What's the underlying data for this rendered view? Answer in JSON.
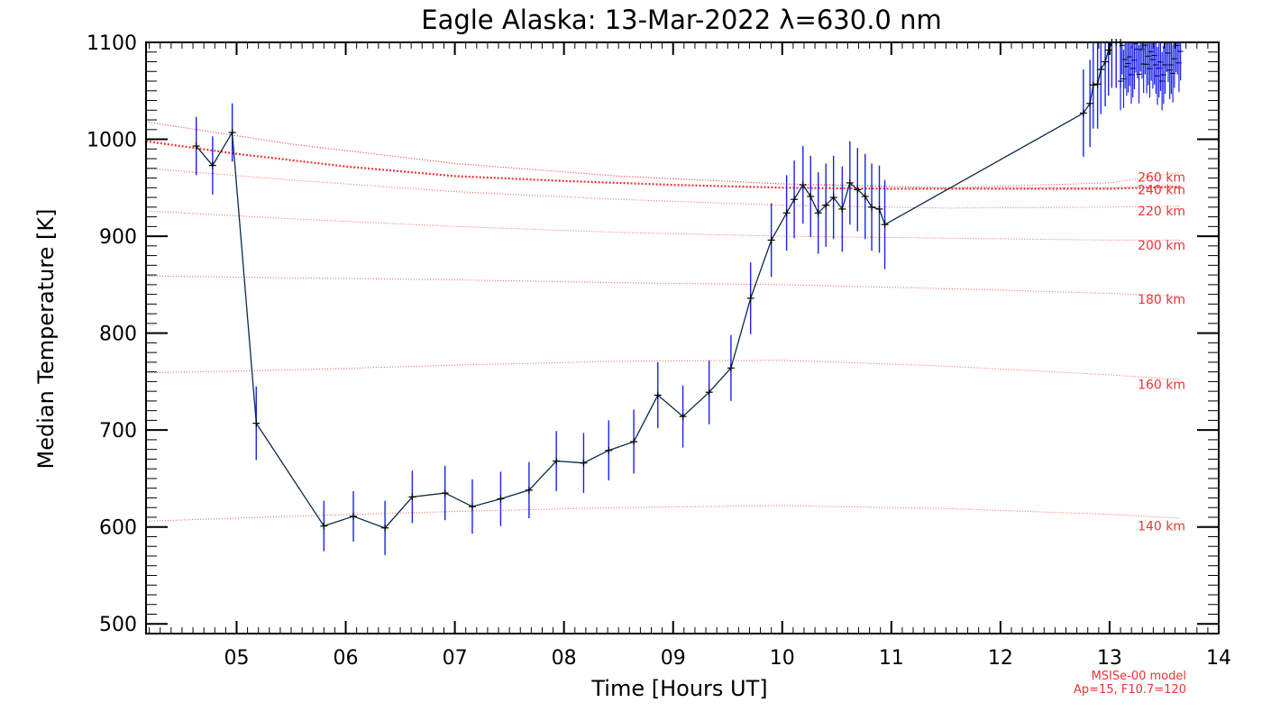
{
  "chart_data": {
    "type": "line",
    "title": "Eagle Alaska: 13-Mar-2022 λ=630.0 nm",
    "xlabel": "Time [Hours UT]",
    "ylabel": "Median Temperature [K]",
    "xlim": [
      4.17,
      14.0
    ],
    "ylim": [
      490,
      1100
    ],
    "x_ticks": [
      5,
      6,
      7,
      8,
      9,
      10,
      11,
      12,
      13,
      14
    ],
    "x_tick_labels": [
      "05",
      "06",
      "07",
      "08",
      "09",
      "10",
      "11",
      "12",
      "13",
      "14"
    ],
    "y_ticks": [
      500,
      600,
      700,
      800,
      900,
      1000,
      1100
    ],
    "y_tick_labels": [
      "500",
      "600",
      "700",
      "800",
      "900",
      "1000",
      "1100"
    ],
    "grid": false,
    "series": [
      {
        "color": "#0b2a4a",
        "errorbar_color": "#1a22ee",
        "x": [
          4.63,
          4.78,
          4.96,
          5.18,
          5.8,
          6.07,
          6.36,
          6.61,
          6.91,
          7.16,
          7.42,
          7.68,
          7.93,
          8.18,
          8.41,
          8.64,
          8.86,
          9.09,
          9.33,
          9.53,
          9.71,
          9.9,
          10.04,
          10.11,
          10.19,
          10.26,
          10.33,
          10.4,
          10.47,
          10.55,
          10.62,
          10.69,
          10.76,
          10.82,
          10.89,
          10.94,
          12.76,
          12.82,
          12.85,
          12.89,
          12.92,
          12.96,
          12.99,
          13.02,
          13.06,
          13.1
        ],
        "y": [
          993,
          973,
          1007,
          707,
          601,
          611,
          599,
          631,
          635,
          621,
          629,
          638,
          668,
          666,
          679,
          688,
          736,
          714,
          739,
          764,
          836,
          896,
          924,
          938,
          953,
          941,
          924,
          932,
          940,
          928,
          955,
          948,
          941,
          930,
          928,
          912,
          1027,
          1037,
          1056,
          1057,
          1072,
          1080,
          1092,
          1100,
          1100,
          1100
        ],
        "errors": [
          30,
          30,
          30,
          38,
          26,
          26,
          28,
          27,
          28,
          28,
          28,
          29,
          31,
          31,
          31,
          33,
          34,
          32,
          33,
          34,
          37,
          38,
          39,
          40,
          40,
          42,
          42,
          43,
          43,
          44,
          43,
          43,
          44,
          45,
          45,
          46,
          45,
          45,
          45,
          46,
          46,
          46,
          47,
          47,
          47,
          47
        ]
      }
    ],
    "scatter_cluster": {
      "x_range": [
        13.1,
        13.65
      ],
      "y_range": [
        1060,
        1100
      ],
      "note": "dense unresolved points above the plotted range"
    },
    "model_curves": {
      "color": "#e33",
      "curves": [
        {
          "label": "140 km",
          "x": [
            4.17,
            5.5,
            7.0,
            8.5,
            10.0,
            11.5,
            13.0,
            13.65
          ],
          "y": [
            606,
            611,
            616,
            620,
            622,
            619,
            613,
            609
          ]
        },
        {
          "label": "160 km",
          "x": [
            4.17,
            5.5,
            7.0,
            8.5,
            10.0,
            11.5,
            13.0,
            13.65
          ],
          "y": [
            759,
            762,
            767,
            771,
            772,
            766,
            757,
            752
          ]
        },
        {
          "label": "180 km",
          "x": [
            4.17,
            5.5,
            7.0,
            8.5,
            10.0,
            11.5,
            13.0,
            13.65
          ],
          "y": [
            859,
            857,
            855,
            852,
            850,
            846,
            841,
            838
          ]
        },
        {
          "label": "200 km",
          "x": [
            4.17,
            5.5,
            7.0,
            8.5,
            10.0,
            11.5,
            13.0,
            13.65
          ],
          "y": [
            926,
            918,
            910,
            904,
            900,
            898,
            896,
            896
          ]
        },
        {
          "label": "220 km",
          "x": [
            4.17,
            5.5,
            7.0,
            8.5,
            10.0,
            11.5,
            13.0,
            13.65
          ],
          "y": [
            970,
            958,
            946,
            938,
            932,
            929,
            930,
            931
          ]
        },
        {
          "label": "240 km",
          "x": [
            4.17,
            5.5,
            7.0,
            8.5,
            10.0,
            11.5,
            13.0,
            13.65
          ],
          "y": [
            1018,
            995,
            975,
            962,
            954,
            950,
            950,
            952
          ]
        },
        {
          "label": "260 km",
          "x": [
            4.17,
            5.5,
            7.0,
            8.5,
            10.0,
            11.5,
            13.0,
            13.65
          ],
          "y": [
            1018,
            995,
            975,
            962,
            954,
            950,
            955,
            966
          ]
        }
      ],
      "highlight": {
        "x": [
          4.17,
          5.0,
          6.0,
          7.0,
          8.0,
          9.0,
          10.0,
          11.0,
          12.0,
          13.0,
          13.65
        ],
        "y": [
          998,
          985,
          972,
          962,
          957,
          953,
          950,
          949,
          949,
          949,
          951
        ]
      }
    },
    "model_note": [
      "MSISe-00 model",
      "Ap=15, F10.7=120"
    ]
  }
}
